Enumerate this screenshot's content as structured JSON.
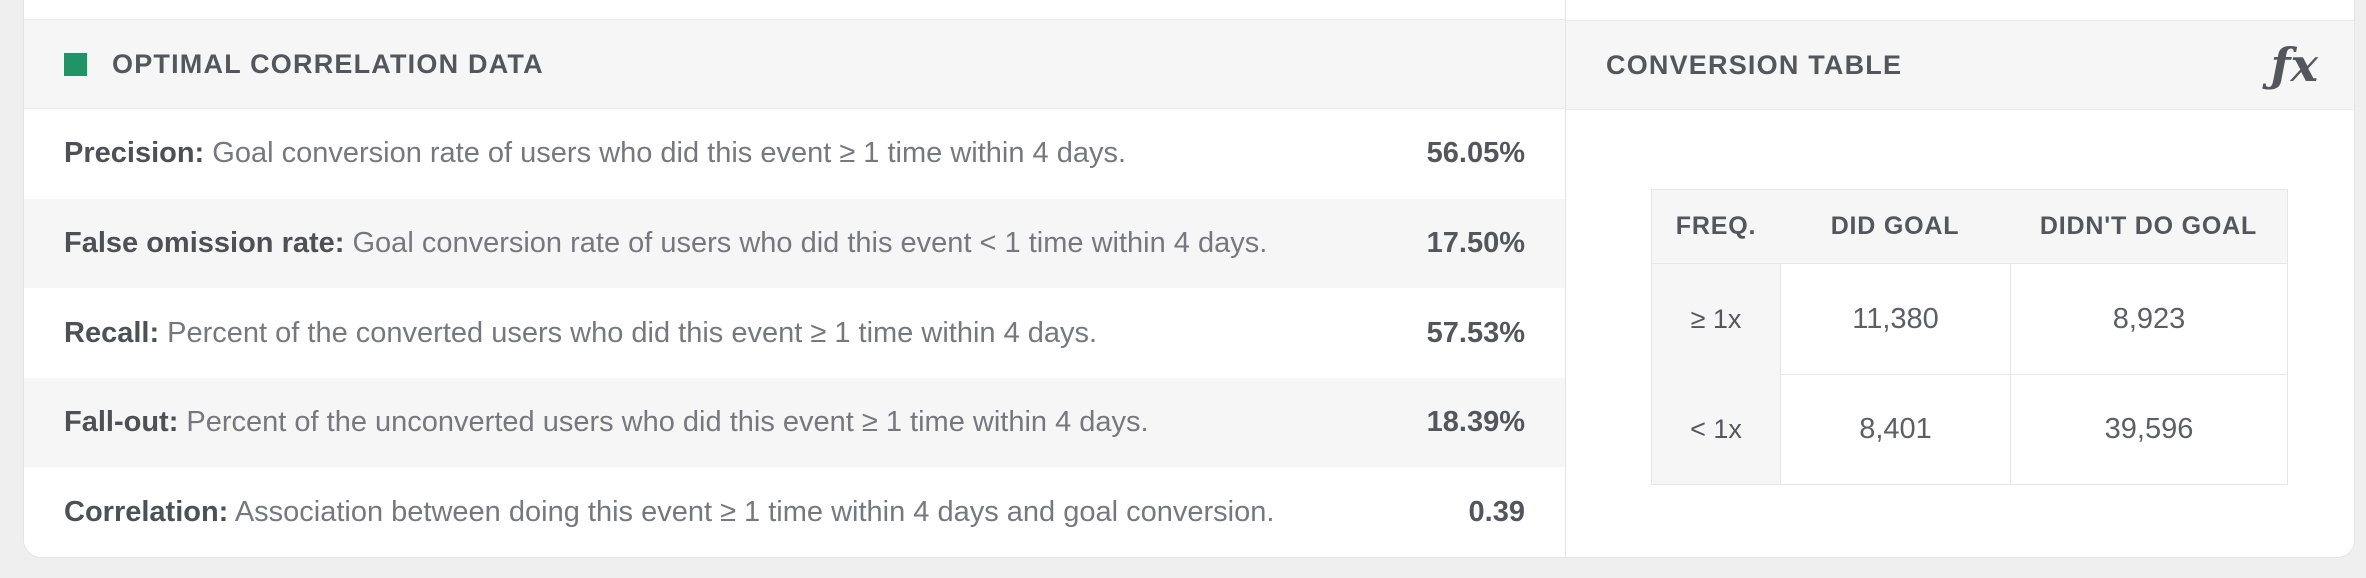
{
  "correlation_panel": {
    "title": "OPTIMAL CORRELATION DATA",
    "legend_color": "#219366",
    "rows": [
      {
        "label": "Precision:",
        "description": "Goal conversion rate of users who did this event ≥ 1 time within 4 days.",
        "value": "56.05%"
      },
      {
        "label": "False omission rate:",
        "description": "Goal conversion rate of users who did this event < 1 time within 4 days.",
        "value": "17.50%"
      },
      {
        "label": "Recall:",
        "description": "Percent of the converted users who did this event ≥ 1 time within 4 days.",
        "value": "57.53%"
      },
      {
        "label": "Fall-out:",
        "description": "Percent of the unconverted users who did this event ≥ 1 time within 4 days.",
        "value": "18.39%"
      },
      {
        "label": "Correlation:",
        "description": "Association between doing this event ≥ 1 time within 4 days and goal conversion.",
        "value": "0.39"
      }
    ]
  },
  "conversion_panel": {
    "title": "CONVERSION TABLE",
    "fx_icon_glyph": "ƒx",
    "table": {
      "columns": [
        "FREQ.",
        "DID GOAL",
        "DIDN'T DO GOAL"
      ],
      "rows": [
        {
          "freq": "≥ 1x",
          "did_goal": "11,380",
          "didnt_do_goal": "8,923"
        },
        {
          "freq": "< 1x",
          "did_goal": "8,401",
          "didnt_do_goal": "39,596"
        }
      ]
    }
  }
}
